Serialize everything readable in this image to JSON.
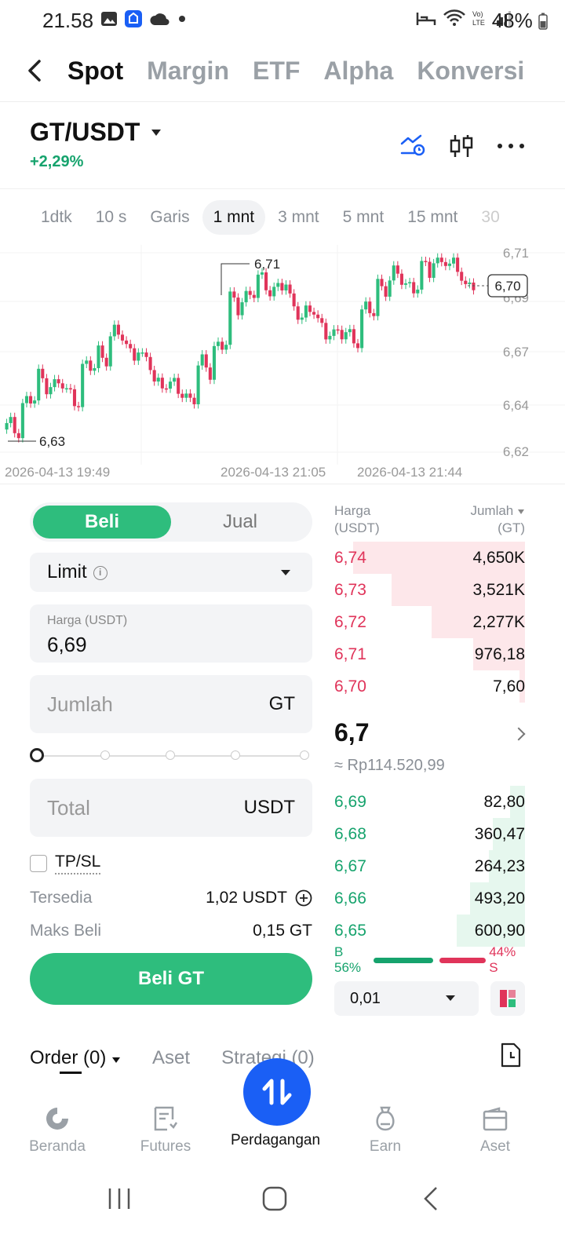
{
  "status_bar": {
    "time": "21.58",
    "battery": "48%"
  },
  "top_tabs": [
    "Spot",
    "Margin",
    "ETF",
    "Alpha",
    "Konversi"
  ],
  "pair": {
    "symbol": "GT/USDT",
    "change": "+2,29%"
  },
  "intervals": [
    "1dtk",
    "10 s",
    "Garis",
    "1 mnt",
    "3 mnt",
    "5 mnt",
    "15 mnt",
    "30"
  ],
  "chart_data": {
    "type": "candlestick",
    "y_ticks": [
      "6,71",
      "6,69",
      "6,67",
      "6,64",
      "6,62"
    ],
    "x_ticks": [
      "2026-04-13 19:49",
      "2026-04-13 21:05",
      "2026-04-13 21:44"
    ],
    "high_label": "6,71",
    "low_label": "6,63",
    "last_price_label": "6,70",
    "ylim": [
      6.62,
      6.715
    ]
  },
  "order_form": {
    "buy_label": "Beli",
    "sell_label": "Jual",
    "order_type": "Limit",
    "price_label": "Harga (USDT)",
    "price_value": "6,69",
    "qty_placeholder": "Jumlah",
    "qty_unit": "GT",
    "total_placeholder": "Total",
    "total_unit": "USDT",
    "tpsl_label": "TP/SL",
    "available_label": "Tersedia",
    "available_value": "1,02 USDT",
    "max_buy_label": "Maks Beli",
    "max_buy_value": "0,15 GT",
    "submit_label": "Beli GT"
  },
  "order_book": {
    "price_header": "Harga\n(USDT)",
    "price_header_1": "Harga",
    "price_header_2": "(USDT)",
    "qty_header_1": "Jumlah",
    "qty_header_2": "(GT)",
    "asks": [
      {
        "price": "6,74",
        "qty": "4,650K",
        "depth": 0.9
      },
      {
        "price": "6,73",
        "qty": "3,521K",
        "depth": 0.7
      },
      {
        "price": "6,72",
        "qty": "2,277K",
        "depth": 0.49
      },
      {
        "price": "6,71",
        "qty": "976,18",
        "depth": 0.27
      },
      {
        "price": "6,70",
        "qty": "7,60",
        "depth": 0.03
      }
    ],
    "last_price": "6,7",
    "fiat_value": "≈ Rp114.520,99",
    "bids": [
      {
        "price": "6,69",
        "qty": "82,80",
        "depth": 0.08
      },
      {
        "price": "6,68",
        "qty": "360,47",
        "depth": 0.17
      },
      {
        "price": "6,67",
        "qty": "264,23",
        "depth": 0.19
      },
      {
        "price": "6,66",
        "qty": "493,20",
        "depth": 0.29
      },
      {
        "price": "6,65",
        "qty": "600,90",
        "depth": 0.36
      }
    ],
    "buy_ratio": "B 56%",
    "sell_ratio": "44% S",
    "buy_ratio_value": 0.56,
    "depth_step": "0,01"
  },
  "orders_tabs": {
    "orders": "Order (0)",
    "assets": "Aset",
    "strategy": "Strategi (0)"
  },
  "bottom_nav": [
    "Beranda",
    "Futures",
    "Perdagangan",
    "Earn",
    "Aset"
  ],
  "colors": {
    "green": "#2ebd7d",
    "red": "#e0345a",
    "blue": "#1a5ff5"
  }
}
